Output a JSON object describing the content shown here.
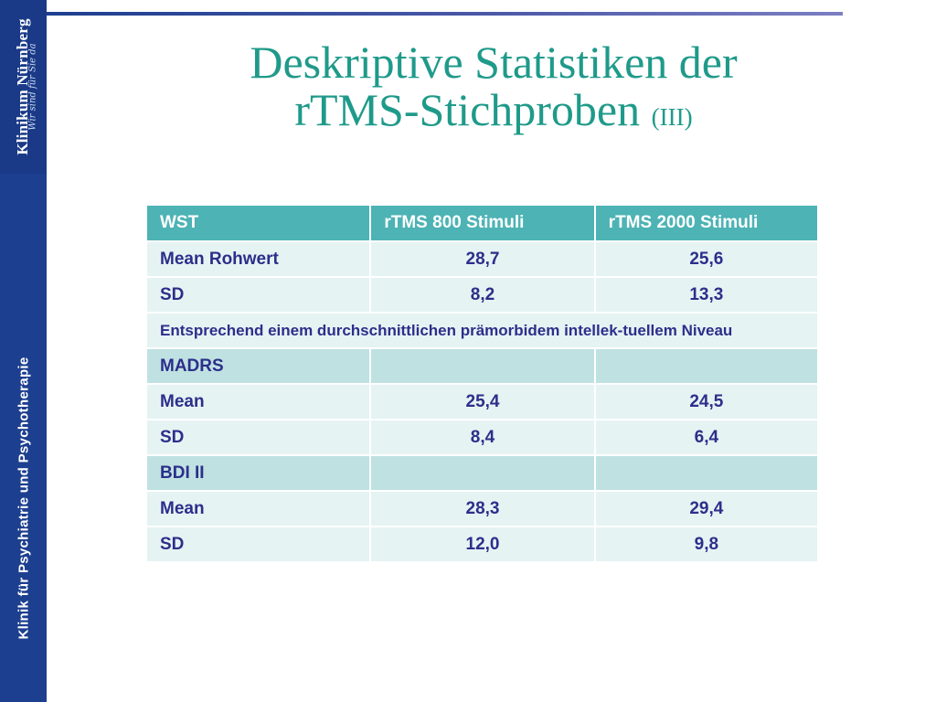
{
  "sidebar": {
    "logo_text": "Klinikum Nürnberg",
    "logo_tagline": "Wir sind für Sie da",
    "label": "Klinik für Psychiatrie und Psychotherapie"
  },
  "title": {
    "line1": "Deskriptive Statistiken der",
    "line2": "rTMS-Stichproben",
    "suffix": "(III)"
  },
  "table": {
    "headers": [
      "WST",
      "rTMS 800 Stimuli",
      "rTMS 2000 Stimuli"
    ],
    "wst": {
      "mean": [
        "Mean Rohwert",
        "28,7",
        "25,6"
      ],
      "sd": [
        "SD",
        "8,2",
        "13,3"
      ],
      "note": "Entsprechend einem durchschnittlichen prämorbidem  intellek-tuellem Niveau"
    },
    "madrs": {
      "label": "MADRS",
      "mean": [
        "Mean",
        "25,4",
        "24,5"
      ],
      "sd": [
        "SD",
        "8,4",
        "6,4"
      ]
    },
    "bdi": {
      "label": "BDI II",
      "mean": [
        "Mean",
        "28,3",
        "29,4"
      ],
      "sd": [
        "SD",
        "12,0",
        "9,8"
      ]
    }
  },
  "colors": {
    "sidebar": "#1d3f8f",
    "title": "#1f9a8a",
    "header_row": "#4db3b5",
    "section_row": "#bfe1e1",
    "data_row": "#e6f3f3",
    "value_text": "#2b2f8a"
  }
}
